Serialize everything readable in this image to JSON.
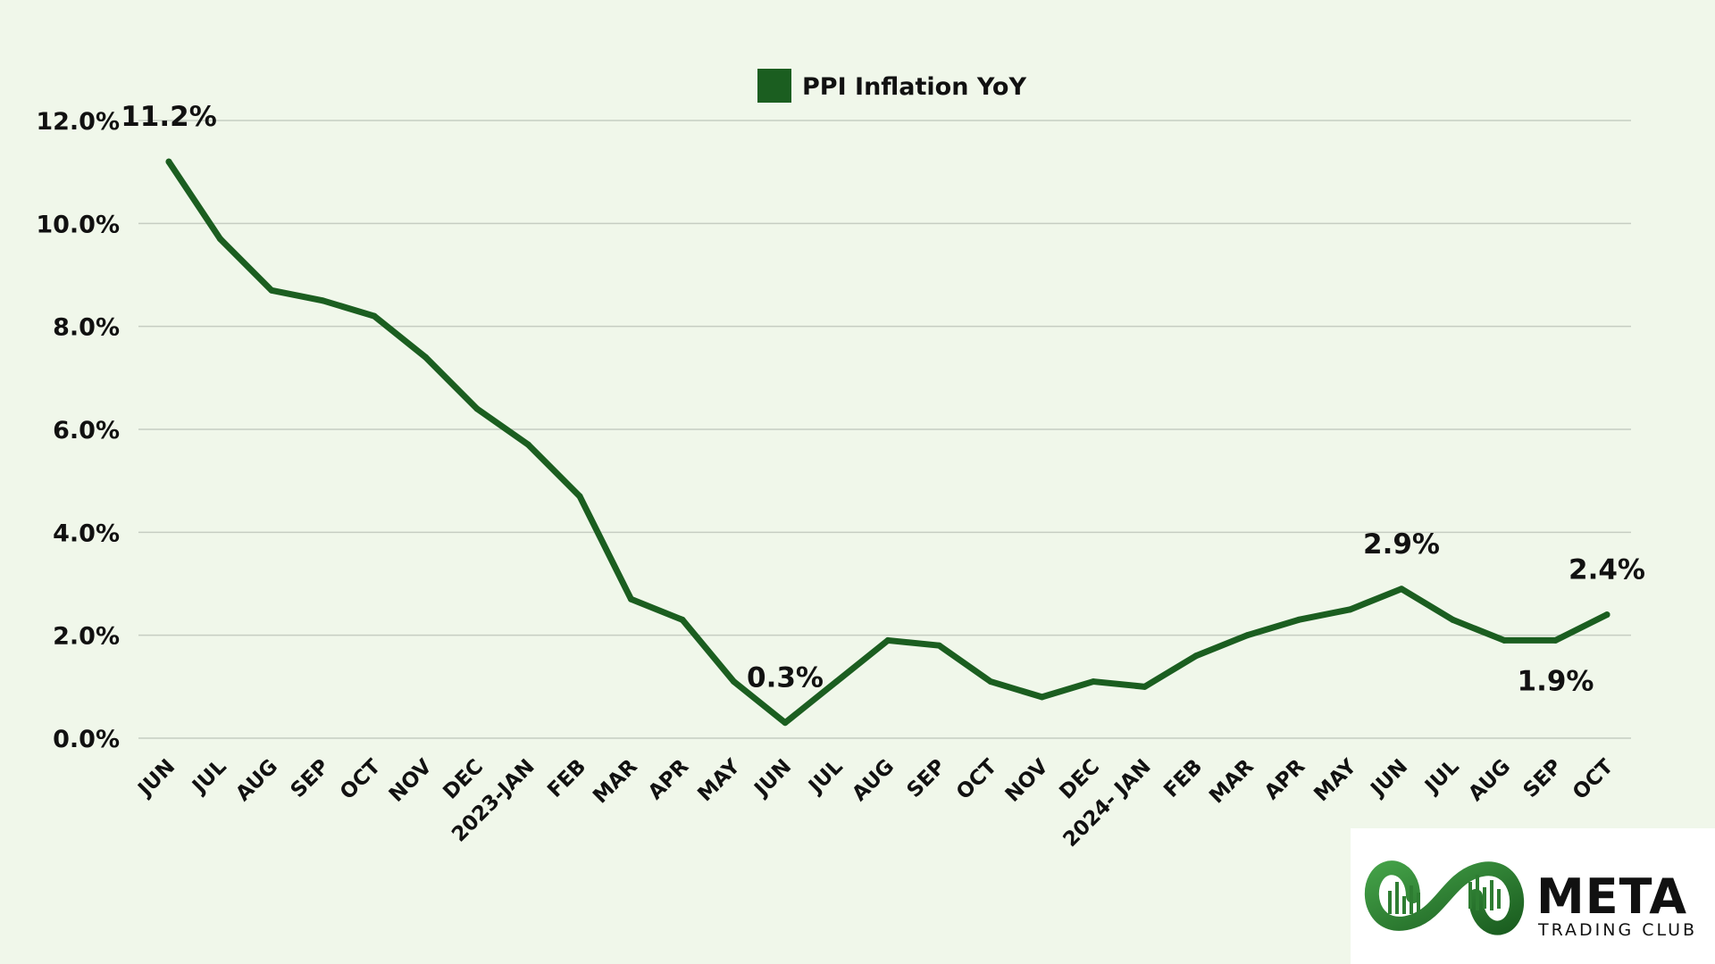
{
  "chart_data": {
    "type": "line",
    "categories": [
      "JUN",
      "JUL",
      "AUG",
      "SEP",
      "OCT",
      "NOV",
      "DEC",
      "2023-JAN",
      "FEB",
      "MAR",
      "APR",
      "MAY",
      "JUN",
      "JUL",
      "AUG",
      "SEP",
      "OCT",
      "NOV",
      "DEC",
      "2024- JAN",
      "FEB",
      "MAR",
      "APR",
      "MAY",
      "JUN",
      "JUL",
      "AUG",
      "SEP",
      "OCT"
    ],
    "series": [
      {
        "name": "PPI Inflation YoY",
        "color": "#1b5e20",
        "values": [
          11.2,
          9.7,
          8.7,
          8.5,
          8.2,
          7.4,
          6.4,
          5.7,
          4.7,
          2.7,
          2.3,
          1.1,
          0.3,
          1.1,
          1.9,
          1.8,
          1.1,
          0.8,
          1.1,
          1.0,
          1.6,
          2.0,
          2.3,
          2.5,
          2.9,
          2.3,
          1.9,
          1.9,
          2.4
        ]
      }
    ],
    "yticks": [
      "0.0%",
      "2.0%",
      "4.0%",
      "6.0%",
      "8.0%",
      "10.0%",
      "12.0%"
    ],
    "ylim": [
      0,
      12
    ],
    "grid": true,
    "legend": "top-center",
    "annotations": [
      {
        "index": 0,
        "text": "11.2%",
        "pos": "above"
      },
      {
        "index": 12,
        "text": "0.3%",
        "pos": "above"
      },
      {
        "index": 24,
        "text": "2.9%",
        "pos": "above"
      },
      {
        "index": 27,
        "text": "1.9%",
        "pos": "below"
      },
      {
        "index": 28,
        "text": "2.4%",
        "pos": "above"
      }
    ]
  },
  "logo": {
    "word": "META",
    "sub": "TRADING CLUB",
    "color": "#2e7d32"
  }
}
